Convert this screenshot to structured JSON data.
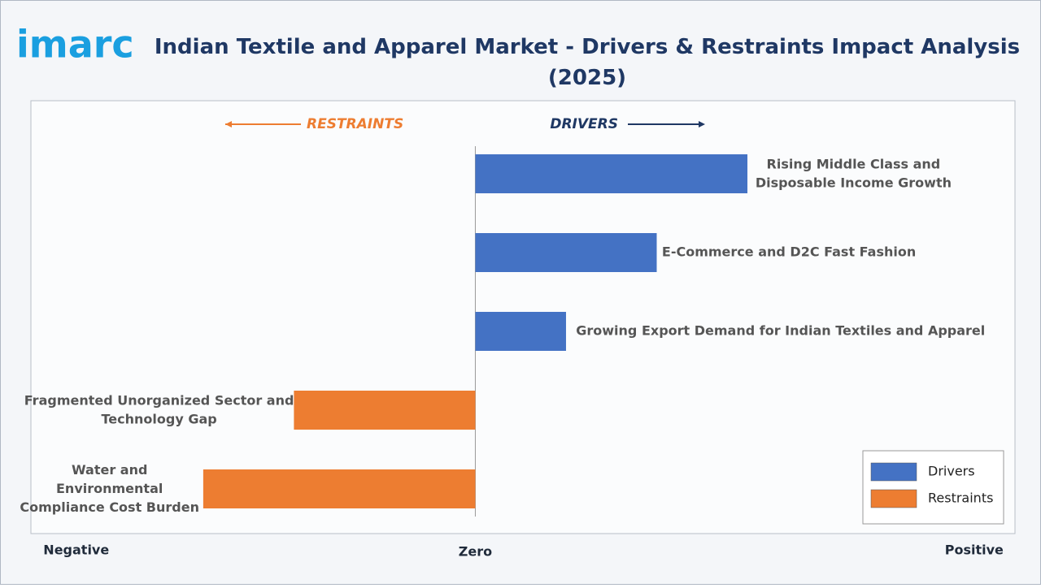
{
  "logo": "imarc",
  "chart_data": {
    "type": "diverging-bar",
    "title": "Indian Textile and Apparel Market - Drivers & Restraints Impact Analysis (2025)",
    "annotations": {
      "left": "RESTRAINTS",
      "right": "DRIVERS"
    },
    "categories": [
      "Rising Middle Class and\nDisposable Income Growth",
      "E-Commerce and D2C Fast Fashion",
      "Growing Export Demand for Indian Textiles and Apparel",
      "Fragmented Unorganized Sector and\nTechnology Gap",
      "Water and\nEnvironmental\nCompliance Cost Burden"
    ],
    "series": [
      {
        "name": "Drivers",
        "color": "#4472c4",
        "values": [
          3,
          2,
          1,
          null,
          null
        ]
      },
      {
        "name": "Restraints",
        "color": "#ed7d31",
        "values": [
          null,
          null,
          null,
          -2,
          -3
        ]
      }
    ],
    "xlim": [
      -4.9,
      5.95
    ],
    "xticks": [
      {
        "value": -4.4,
        "label": "Negative"
      },
      {
        "value": 0,
        "label": "Zero"
      },
      {
        "value": 5.5,
        "label": "Positive"
      }
    ],
    "legend": "lower right"
  }
}
